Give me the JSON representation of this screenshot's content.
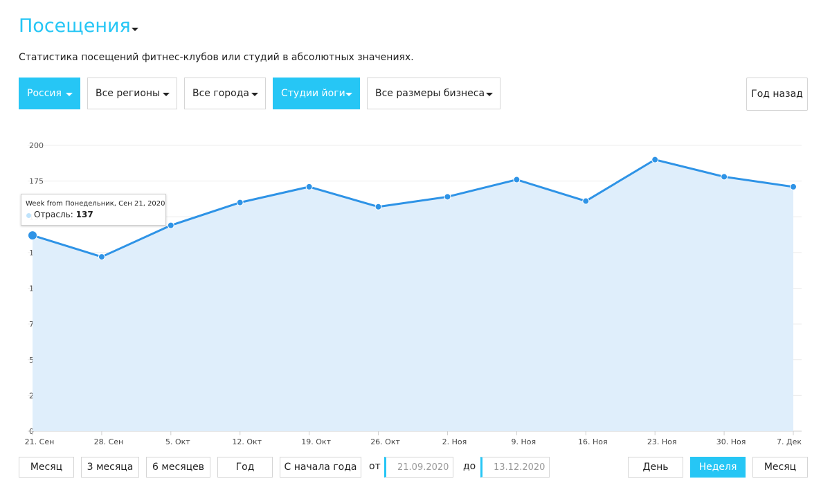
{
  "header": {
    "title": "Посещения",
    "subtitle": "Статистика посещений фитнес-клубов или студий в абсолютных значениях."
  },
  "filters": [
    {
      "label": "Россия",
      "active": true
    },
    {
      "label": "Все регионы",
      "active": false
    },
    {
      "label": "Все города",
      "active": false
    },
    {
      "label": "Студии йоги",
      "active": true
    },
    {
      "label": "Все размеры бизнеса",
      "active": false
    }
  ],
  "compare_button": "Год назад",
  "tooltip": {
    "header": "Week from Понедельник, Сен 21, 2020",
    "series_label": "Отрасль:",
    "value": "137"
  },
  "period_buttons": [
    "Месяц",
    "3 месяца",
    "6 месяцев",
    "Год",
    "С начала года"
  ],
  "date_range": {
    "from_label": "от",
    "from": "21.09.2020",
    "to_label": "до",
    "to": "13.12.2020"
  },
  "granularity_buttons": [
    {
      "label": "День",
      "active": false
    },
    {
      "label": "Неделя",
      "active": true
    },
    {
      "label": "Месяц",
      "active": false
    }
  ],
  "colors": {
    "accent": "#26c6f5",
    "line": "#2e93e6",
    "fill": "#dfeefb"
  },
  "chart_data": {
    "type": "area",
    "categories": [
      "21. Сен",
      "28. Сен",
      "5. Окт",
      "12. Окт",
      "19. Окт",
      "26. Окт",
      "2. Ноя",
      "9. Ноя",
      "16. Ноя",
      "23. Ноя",
      "30. Ноя",
      "7. Дек"
    ],
    "series": [
      {
        "name": "Отрасль",
        "values": [
          137,
          122,
          144,
          160,
          171,
          157,
          164,
          176,
          161,
          190,
          178,
          171
        ]
      }
    ],
    "ylim": [
      0,
      200
    ],
    "yticks": [
      0,
      25,
      50,
      75,
      100,
      125,
      150,
      175,
      200
    ],
    "grid": true,
    "highlighted_index": 0
  }
}
